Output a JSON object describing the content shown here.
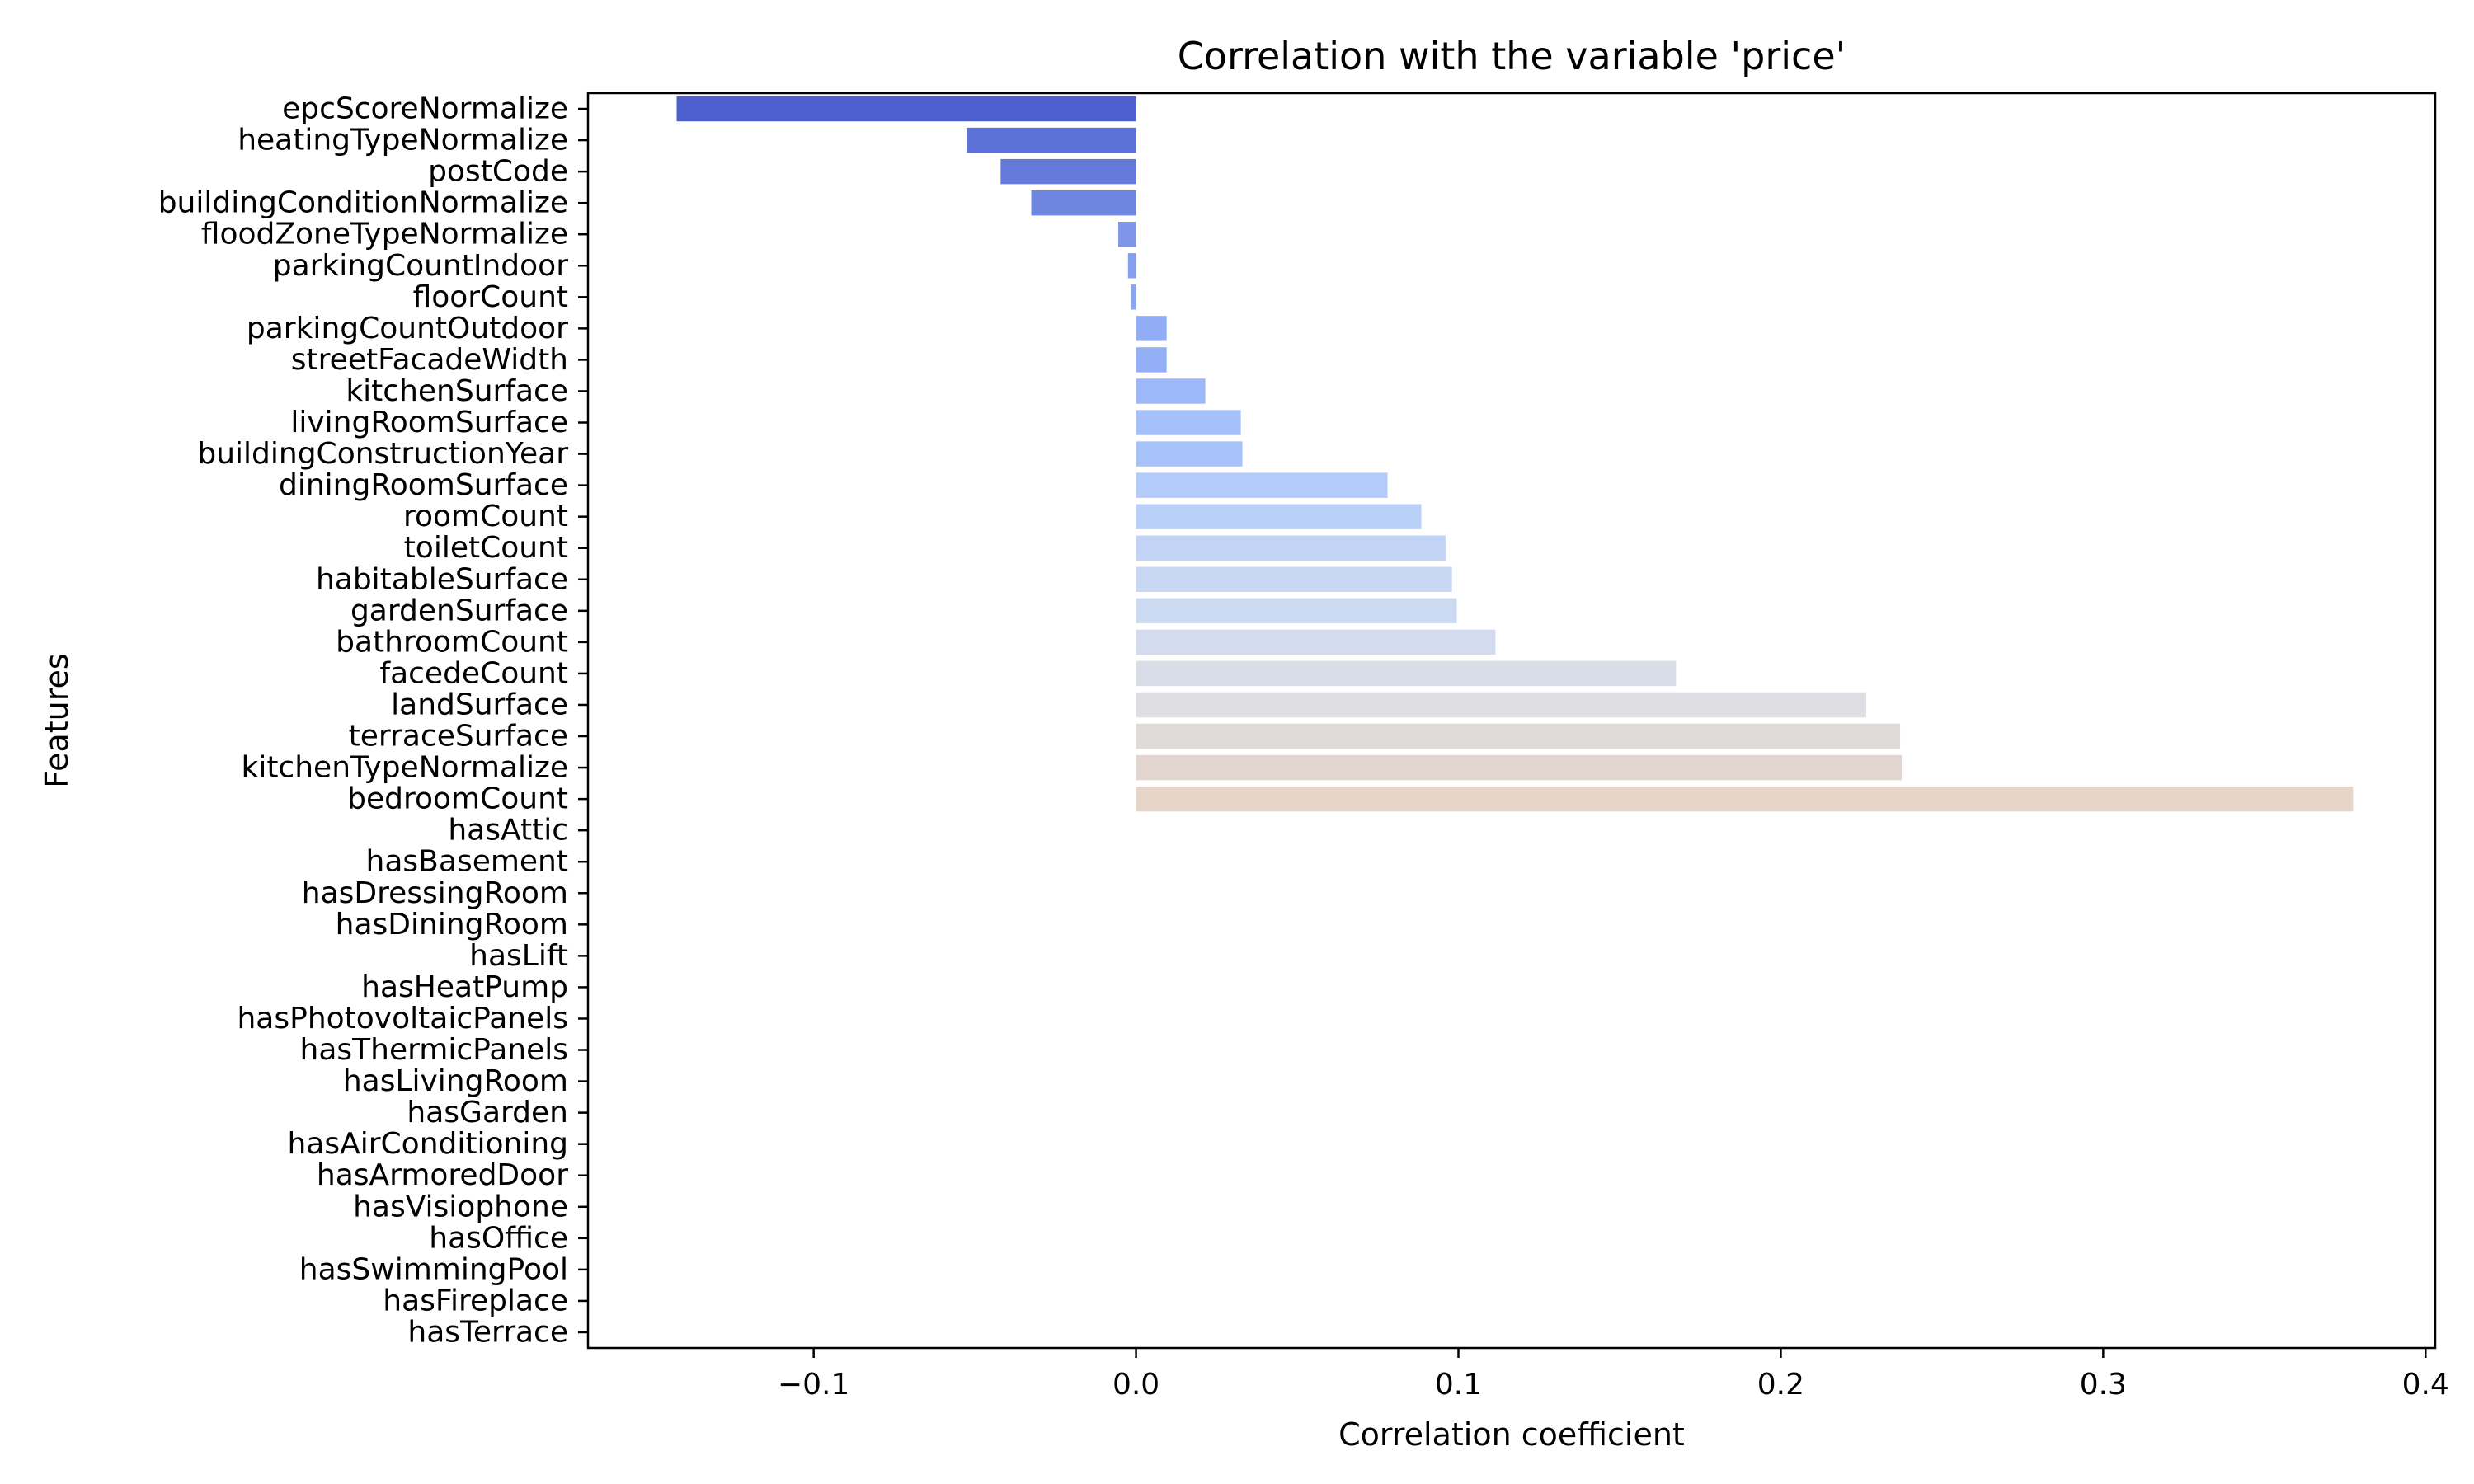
{
  "chart_data": {
    "type": "bar",
    "orientation": "horizontal",
    "title": "Correlation with the variable 'price'",
    "xlabel": "Correlation coefficient",
    "ylabel": "Features",
    "xlim": [
      -0.17,
      0.403
    ],
    "xticks": [
      -0.1,
      0.0,
      0.1,
      0.2,
      0.3,
      0.4
    ],
    "xtick_labels": [
      "−0.1",
      "0.0",
      "0.1",
      "0.2",
      "0.3",
      "0.4"
    ],
    "grid": false,
    "categories": [
      "epcScoreNormalize",
      "heatingTypeNormalize",
      "postCode",
      "buildingConditionNormalize",
      "floodZoneTypeNormalize",
      "parkingCountIndoor",
      "floorCount",
      "parkingCountOutdoor",
      "streetFacadeWidth",
      "kitchenSurface",
      "livingRoomSurface",
      "buildingConstructionYear",
      "diningRoomSurface",
      "roomCount",
      "toiletCount",
      "habitableSurface",
      "gardenSurface",
      "bathroomCount",
      "facedeCount",
      "landSurface",
      "terraceSurface",
      "kitchenTypeNormalize",
      "bedroomCount",
      "hasAttic",
      "hasBasement",
      "hasDressingRoom",
      "hasDiningRoom",
      "hasLift",
      "hasHeatPump",
      "hasPhotovoltaicPanels",
      "hasThermicPanels",
      "hasLivingRoom",
      "hasGarden",
      "hasAirConditioning",
      "hasArmoredDoor",
      "hasVisiophone",
      "hasOffice",
      "hasSwimmingPool",
      "hasFireplace",
      "hasTerrace"
    ],
    "values": [
      -0.1425,
      -0.0525,
      -0.042,
      -0.0325,
      -0.0055,
      -0.0025,
      -0.0015,
      0.0095,
      0.0095,
      0.0215,
      0.0325,
      0.033,
      0.078,
      0.0885,
      0.096,
      0.098,
      0.0995,
      0.1115,
      0.1675,
      0.2265,
      0.237,
      0.2375,
      0.3775,
      null,
      null,
      null,
      null,
      null,
      null,
      null,
      null,
      null,
      null,
      null,
      null,
      null,
      null,
      null,
      null,
      null
    ],
    "colors": [
      "#4e5fd0",
      "#5d72d6",
      "#6479da",
      "#6f86e0",
      "#7e95e8",
      "#85a0ef",
      "#8aa6f0",
      "#91adf5",
      "#93b0f6",
      "#9cb8f8",
      "#a5c0fa",
      "#a8c2fa",
      "#b2cbfa",
      "#b9d0f8",
      "#c1d4f6",
      "#c7d7f3",
      "#ccdaf1",
      "#d3dcee",
      "#d9dde8",
      "#dddde2",
      "#e0dbd8",
      "#e3d6d0",
      "#e8d5c9"
    ]
  }
}
